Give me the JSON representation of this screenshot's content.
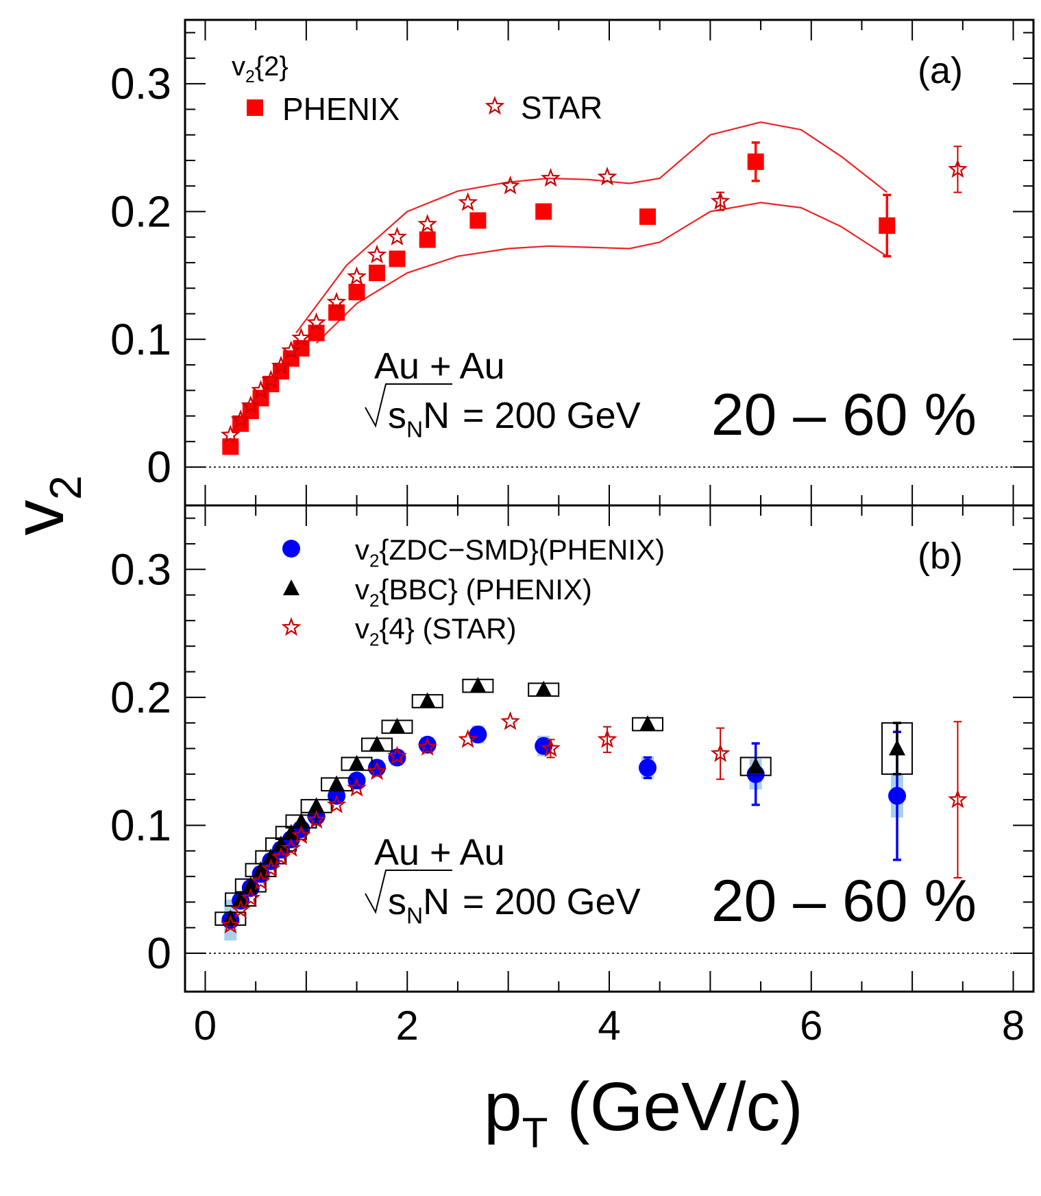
{
  "chart_data": [
    {
      "type": "scatter",
      "panel_label": "(a)",
      "legend_title": "v_2{2}",
      "annotation_system": "Au + Au",
      "annotation_energy": "= 200 GeV",
      "annotation_centrality": "20 – 60 %",
      "xlim": [
        -0.2,
        8.2
      ],
      "ylim": [
        -0.03,
        0.35
      ],
      "series": [
        {
          "name": "PHENIX",
          "marker": "square",
          "color": "#ff0000",
          "x": [
            0.25,
            0.35,
            0.45,
            0.55,
            0.65,
            0.75,
            0.85,
            0.95,
            1.1,
            1.3,
            1.5,
            1.7,
            1.9,
            2.2,
            2.7,
            3.35,
            4.38,
            5.45,
            6.75
          ],
          "y": [
            0.016,
            0.034,
            0.044,
            0.054,
            0.065,
            0.075,
            0.085,
            0.093,
            0.105,
            0.121,
            0.137,
            0.152,
            0.163,
            0.178,
            0.193,
            0.2,
            0.196,
            0.239,
            0.189
          ],
          "yerr": [
            0,
            0,
            0,
            0,
            0,
            0,
            0,
            0,
            0,
            0,
            0,
            0,
            0,
            0,
            0,
            0,
            0,
            0.015,
            0.024
          ]
        },
        {
          "name": "STAR",
          "marker": "star",
          "color": "#cc0000",
          "x": [
            0.25,
            0.35,
            0.45,
            0.55,
            0.65,
            0.75,
            0.85,
            0.95,
            1.1,
            1.3,
            1.5,
            1.7,
            1.9,
            2.2,
            2.6,
            3.02,
            3.42,
            3.98,
            5.1,
            7.45
          ],
          "y": [
            0.025,
            0.037,
            0.048,
            0.06,
            0.068,
            0.079,
            0.091,
            0.101,
            0.113,
            0.129,
            0.149,
            0.166,
            0.18,
            0.19,
            0.207,
            0.22,
            0.226,
            0.227,
            0.208,
            0.233
          ],
          "yerr": [
            0,
            0,
            0,
            0,
            0,
            0,
            0,
            0,
            0,
            0,
            0,
            0,
            0,
            0,
            0,
            0,
            0,
            0,
            0.007,
            0.018
          ]
        }
      ],
      "band_upper": {
        "x": [
          0.9,
          1.4,
          2.0,
          2.5,
          3.0,
          3.4,
          3.8,
          4.2,
          4.5,
          5.0,
          5.5,
          5.9,
          6.3,
          6.75
        ],
        "y": [
          0.105,
          0.158,
          0.2,
          0.216,
          0.223,
          0.226,
          0.225,
          0.222,
          0.226,
          0.26,
          0.27,
          0.264,
          0.243,
          0.215
        ]
      },
      "band_lower": {
        "x": [
          1.1,
          1.5,
          2.0,
          2.5,
          3.0,
          3.4,
          3.8,
          4.2,
          4.5,
          5.0,
          5.5,
          5.9,
          6.3,
          6.75
        ],
        "y": [
          0.097,
          0.128,
          0.152,
          0.165,
          0.171,
          0.173,
          0.172,
          0.171,
          0.176,
          0.2,
          0.207,
          0.203,
          0.188,
          0.165
        ]
      }
    },
    {
      "type": "scatter",
      "panel_label": "(b)",
      "annotation_system": "Au + Au",
      "annotation_energy": "= 200 GeV",
      "annotation_centrality": "20 – 60 %",
      "xlim": [
        -0.2,
        8.2
      ],
      "ylim": [
        -0.03,
        0.35
      ],
      "series": [
        {
          "name": "v_2{ZDC−SMD}(PHENIX)",
          "marker": "circle",
          "color": "#0000ff",
          "syscolor": "#a8d0f0",
          "x": [
            0.25,
            0.35,
            0.45,
            0.55,
            0.65,
            0.75,
            0.85,
            0.95,
            1.1,
            1.3,
            1.5,
            1.7,
            1.9,
            2.2,
            2.7,
            3.35,
            4.38,
            5.45,
            6.85
          ],
          "y": [
            0.026,
            0.041,
            0.051,
            0.062,
            0.072,
            0.081,
            0.089,
            0.097,
            0.107,
            0.123,
            0.135,
            0.145,
            0.153,
            0.163,
            0.171,
            0.162,
            0.145,
            0.14,
            0.123
          ],
          "yerr": [
            0,
            0,
            0,
            0,
            0,
            0,
            0,
            0,
            0,
            0,
            0,
            0,
            0,
            0,
            0,
            0,
            0.008,
            0.024,
            0.05
          ],
          "syserr": [
            0.016,
            0.006,
            0.006,
            0.006,
            0.006,
            0.006,
            0.006,
            0.006,
            0.006,
            0.006,
            0.006,
            0.006,
            0.006,
            0.006,
            0.007,
            0.008,
            0.009,
            0.012,
            0.017
          ]
        },
        {
          "name": "v_2{BBC} (PHENIX)",
          "marker": "triangle",
          "color": "#000000",
          "x": [
            0.25,
            0.35,
            0.45,
            0.55,
            0.65,
            0.75,
            0.85,
            0.95,
            1.1,
            1.3,
            1.5,
            1.7,
            1.9,
            2.2,
            2.7,
            3.35,
            4.38,
            5.45,
            6.85
          ],
          "y": [
            0.027,
            0.042,
            0.053,
            0.065,
            0.075,
            0.085,
            0.094,
            0.103,
            0.115,
            0.132,
            0.148,
            0.163,
            0.177,
            0.197,
            0.209,
            0.206,
            0.179,
            0.146,
            0.16
          ],
          "yerr": [
            0,
            0,
            0,
            0,
            0,
            0,
            0,
            0,
            0,
            0,
            0,
            0,
            0,
            0,
            0,
            0,
            0,
            0,
            0.02
          ],
          "syserr": [
            0.005,
            0.005,
            0.005,
            0.005,
            0.005,
            0.005,
            0.005,
            0.005,
            0.005,
            0.005,
            0.005,
            0.005,
            0.005,
            0.005,
            0.005,
            0.005,
            0.005,
            0.007,
            0.02
          ]
        },
        {
          "name": "v_2{4} (STAR)",
          "marker": "star",
          "color": "#cc0000",
          "x": [
            0.25,
            0.35,
            0.45,
            0.55,
            0.65,
            0.75,
            0.85,
            0.95,
            1.1,
            1.3,
            1.5,
            1.7,
            1.9,
            2.2,
            2.6,
            3.02,
            3.42,
            3.98,
            5.1,
            7.45
          ],
          "y": [
            0.022,
            0.034,
            0.043,
            0.056,
            0.066,
            0.075,
            0.082,
            0.092,
            0.104,
            0.116,
            0.129,
            0.142,
            0.154,
            0.161,
            0.167,
            0.181,
            0.16,
            0.167,
            0.156,
            0.12
          ],
          "yerr": [
            0,
            0,
            0,
            0,
            0,
            0,
            0,
            0,
            0,
            0,
            0,
            0,
            0,
            0,
            0,
            0,
            0.007,
            0.01,
            0.02,
            0.061
          ]
        }
      ]
    }
  ],
  "axes": {
    "ylabel": "v_2",
    "xlabel": "p_T (GeV/c)",
    "x_ticks": [
      "0",
      "2",
      "4",
      "6",
      "8"
    ],
    "x_tick_values": [
      0,
      2,
      4,
      6,
      8
    ],
    "y_ticks": [
      "0",
      "0.1",
      "0.2",
      "0.3"
    ],
    "y_tick_values": [
      0,
      0.1,
      0.2,
      0.3
    ]
  }
}
